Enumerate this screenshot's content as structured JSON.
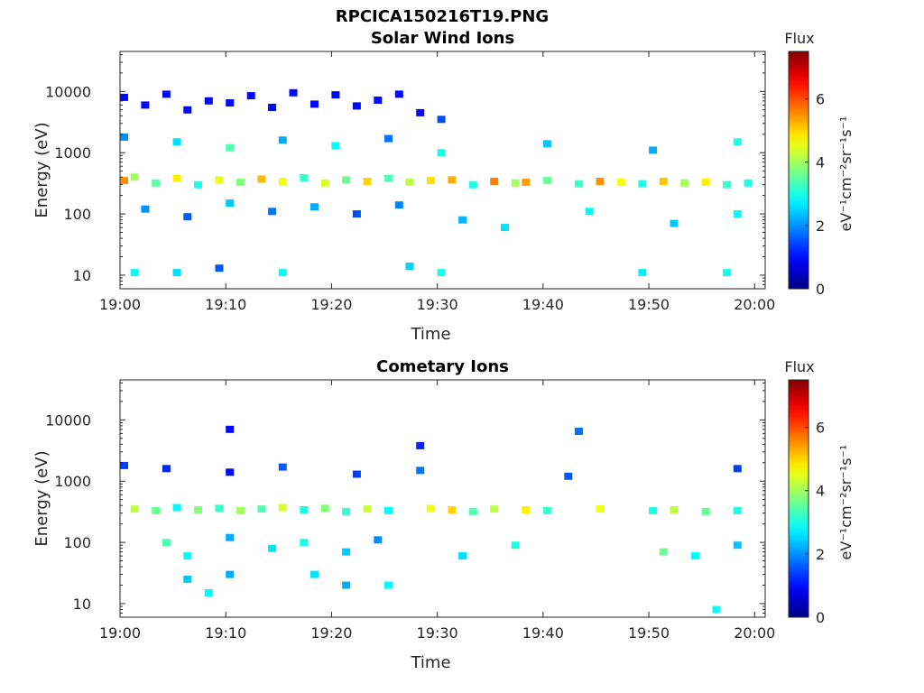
{
  "figure": {
    "title": "RPCICA150216T19.PNG"
  },
  "chart_data": [
    {
      "type": "heatmap",
      "title": "Solar Wind Ions",
      "xlabel": "Time",
      "ylabel": "Energy (eV)",
      "x_ticks": [
        "19:00",
        "19:10",
        "19:20",
        "19:30",
        "19:40",
        "19:50",
        "20:00"
      ],
      "y_scale": "log",
      "y_ticks": [
        10,
        100,
        1000,
        10000
      ],
      "y_tick_labels": [
        "10",
        "100",
        "1000",
        "10000"
      ],
      "ylim": [
        6,
        45000
      ],
      "colorbar": {
        "title": "Flux",
        "label": "eV⁻¹cm⁻²sr⁻¹s⁻¹",
        "ticks": [
          "0",
          "2",
          "4",
          "6"
        ],
        "range": [
          0,
          7.5
        ],
        "colormap": "jet"
      },
      "cells": [
        [
          "19:00",
          8000,
          1
        ],
        [
          "19:02",
          6000,
          1
        ],
        [
          "19:04",
          9000,
          1
        ],
        [
          "19:06",
          5000,
          1
        ],
        [
          "19:08",
          7000,
          1
        ],
        [
          "19:10",
          6500,
          1
        ],
        [
          "19:12",
          8500,
          1
        ],
        [
          "19:14",
          5500,
          1
        ],
        [
          "19:16",
          9500,
          1
        ],
        [
          "19:18",
          6200,
          1
        ],
        [
          "19:20",
          8800,
          1
        ],
        [
          "19:22",
          5800,
          1
        ],
        [
          "19:24",
          7200,
          1
        ],
        [
          "19:26",
          9000,
          1
        ],
        [
          "19:28",
          4500,
          1
        ],
        [
          "19:30",
          3500,
          1.5
        ],
        [
          "19:00",
          350,
          5.5
        ],
        [
          "19:01",
          400,
          4
        ],
        [
          "19:03",
          320,
          3.5
        ],
        [
          "19:05",
          380,
          4.8
        ],
        [
          "19:07",
          300,
          3
        ],
        [
          "19:09",
          360,
          4.5
        ],
        [
          "19:11",
          330,
          3.8
        ],
        [
          "19:13",
          370,
          5.2
        ],
        [
          "19:15",
          340,
          4.6
        ],
        [
          "19:17",
          390,
          3.2
        ],
        [
          "19:19",
          320,
          4.4
        ],
        [
          "19:21",
          360,
          3.6
        ],
        [
          "19:23",
          340,
          5.0
        ],
        [
          "19:25",
          380,
          3.4
        ],
        [
          "19:27",
          330,
          4.2
        ],
        [
          "19:29",
          350,
          4.9
        ],
        [
          "19:31",
          360,
          5.3
        ],
        [
          "19:33",
          300,
          3.0
        ],
        [
          "19:35",
          340,
          5.6
        ],
        [
          "19:37",
          320,
          4.0
        ],
        [
          "19:38",
          330,
          5.4
        ],
        [
          "19:40",
          350,
          3.6
        ],
        [
          "19:43",
          310,
          3.2
        ],
        [
          "19:45",
          340,
          5.5
        ],
        [
          "19:47",
          330,
          4.6
        ],
        [
          "19:49",
          310,
          3.0
        ],
        [
          "19:51",
          340,
          5.1
        ],
        [
          "19:53",
          320,
          4.0
        ],
        [
          "19:55",
          330,
          4.8
        ],
        [
          "19:57",
          300,
          3.2
        ],
        [
          "19:59",
          320,
          3.0
        ],
        [
          "19:00",
          1800,
          2.0
        ],
        [
          "19:05",
          1500,
          2.6
        ],
        [
          "19:10",
          1200,
          3.4
        ],
        [
          "19:15",
          1600,
          2.2
        ],
        [
          "19:20",
          1300,
          2.8
        ],
        [
          "19:25",
          1700,
          1.8
        ],
        [
          "19:30",
          1000,
          3.0
        ],
        [
          "19:40",
          1400,
          2.4
        ],
        [
          "19:50",
          1100,
          2.2
        ],
        [
          "19:58",
          1500,
          3.0
        ],
        [
          "19:02",
          120,
          2.0
        ],
        [
          "19:06",
          90,
          1.6
        ],
        [
          "19:10",
          150,
          2.4
        ],
        [
          "19:14",
          110,
          1.8
        ],
        [
          "19:18",
          130,
          2.2
        ],
        [
          "19:22",
          100,
          1.5
        ],
        [
          "19:26",
          140,
          1.9
        ],
        [
          "19:32",
          80,
          2.3
        ],
        [
          "19:36",
          60,
          2.6
        ],
        [
          "19:44",
          110,
          2.8
        ],
        [
          "19:52",
          70,
          2.4
        ],
        [
          "19:58",
          100,
          2.8
        ],
        [
          "19:01",
          11,
          2.8
        ],
        [
          "19:05",
          11,
          2.6
        ],
        [
          "19:09",
          13,
          1.6
        ],
        [
          "19:15",
          11,
          2.8
        ],
        [
          "19:27",
          14,
          2.5
        ],
        [
          "19:30",
          11,
          3.0
        ],
        [
          "19:49",
          11,
          2.7
        ],
        [
          "19:57",
          11,
          2.9
        ]
      ]
    },
    {
      "type": "heatmap",
      "title": "Cometary Ions",
      "xlabel": "Time",
      "ylabel": "Energy (eV)",
      "x_ticks": [
        "19:00",
        "19:10",
        "19:20",
        "19:30",
        "19:40",
        "19:50",
        "20:00"
      ],
      "y_scale": "log",
      "y_ticks": [
        10,
        100,
        1000,
        10000
      ],
      "y_tick_labels": [
        "10",
        "100",
        "1000",
        "10000"
      ],
      "ylim": [
        6,
        45000
      ],
      "colorbar": {
        "title": "Flux",
        "label": "eV⁻¹cm⁻²sr⁻¹s⁻¹",
        "ticks": [
          "0",
          "2",
          "4",
          "6"
        ],
        "range": [
          0,
          7.5
        ],
        "colormap": "jet"
      },
      "cells": [
        [
          "19:01",
          350,
          4.2
        ],
        [
          "19:03",
          330,
          3.6
        ],
        [
          "19:05",
          370,
          2.8
        ],
        [
          "19:07",
          340,
          3.8
        ],
        [
          "19:09",
          360,
          3.2
        ],
        [
          "19:11",
          330,
          4.0
        ],
        [
          "19:13",
          350,
          3.4
        ],
        [
          "19:15",
          370,
          4.4
        ],
        [
          "19:17",
          340,
          3.0
        ],
        [
          "19:19",
          360,
          3.8
        ],
        [
          "19:21",
          320,
          3.2
        ],
        [
          "19:23",
          350,
          4.3
        ],
        [
          "19:25",
          330,
          2.8
        ],
        [
          "19:29",
          360,
          4.6
        ],
        [
          "19:31",
          340,
          5.0
        ],
        [
          "19:33",
          320,
          3.4
        ],
        [
          "19:35",
          350,
          4.2
        ],
        [
          "19:38",
          340,
          4.8
        ],
        [
          "19:40",
          330,
          3.2
        ],
        [
          "19:45",
          350,
          4.6
        ],
        [
          "19:50",
          330,
          3.0
        ],
        [
          "19:52",
          340,
          4.2
        ],
        [
          "19:55",
          320,
          3.6
        ],
        [
          "19:58",
          330,
          3.0
        ],
        [
          "19:04",
          100,
          3.4
        ],
        [
          "19:06",
          60,
          2.8
        ],
        [
          "19:10",
          120,
          2.2
        ],
        [
          "19:14",
          80,
          2.6
        ],
        [
          "19:17",
          100,
          3.0
        ],
        [
          "19:21",
          70,
          2.4
        ],
        [
          "19:24",
          110,
          2.0
        ],
        [
          "19:32",
          60,
          2.6
        ],
        [
          "19:37",
          90,
          3.0
        ],
        [
          "19:51",
          70,
          3.6
        ],
        [
          "19:54",
          60,
          2.8
        ],
        [
          "19:58",
          90,
          2.4
        ],
        [
          "19:00",
          1800,
          1.4
        ],
        [
          "19:04",
          1600,
          1.2
        ],
        [
          "19:10",
          1400,
          1.0
        ],
        [
          "19:15",
          1700,
          1.6
        ],
        [
          "19:22",
          1300,
          1.4
        ],
        [
          "19:28",
          1500,
          1.8
        ],
        [
          "19:42",
          1200,
          1.6
        ],
        [
          "19:58",
          1600,
          1.4
        ],
        [
          "19:10",
          7000,
          1.0
        ],
        [
          "19:28",
          3800,
          1.2
        ],
        [
          "19:43",
          6500,
          1.8
        ],
        [
          "19:06",
          25,
          2.4
        ],
        [
          "19:08",
          15,
          2.8
        ],
        [
          "19:10",
          30,
          2.2
        ],
        [
          "19:18",
          30,
          2.6
        ],
        [
          "19:21",
          20,
          2.2
        ],
        [
          "19:25",
          20,
          2.8
        ],
        [
          "19:56",
          8,
          2.9
        ]
      ]
    }
  ]
}
